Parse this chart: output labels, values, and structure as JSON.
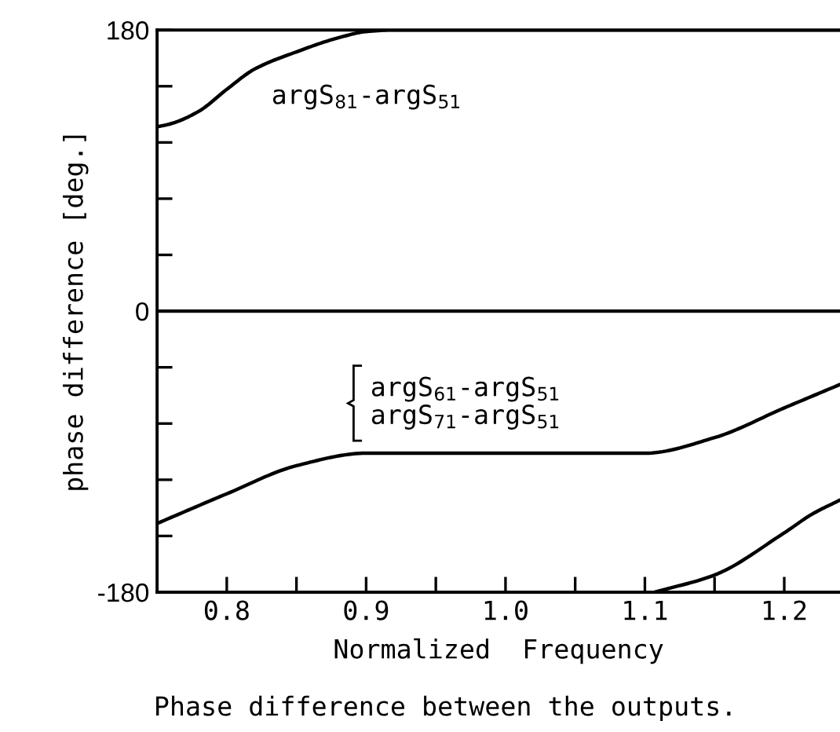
{
  "chart_data": {
    "type": "line",
    "xlabel": "Normalized  Frequency",
    "ylabel": "phase difference [deg.]",
    "xlim": [
      0.75,
      1.24
    ],
    "ylim": [
      -180,
      180
    ],
    "xticks": [
      {
        "value": 0.8,
        "label": "0.8"
      },
      {
        "value": 0.85,
        "label": null
      },
      {
        "value": 0.9,
        "label": "0.9"
      },
      {
        "value": 0.95,
        "label": null
      },
      {
        "value": 1.0,
        "label": "1.0"
      },
      {
        "value": 1.05,
        "label": null
      },
      {
        "value": 1.1,
        "label": "1.1"
      },
      {
        "value": 1.15,
        "label": null
      },
      {
        "value": 1.2,
        "label": "1.2"
      }
    ],
    "yticks": [
      -180,
      {
        "value": -144,
        "label": null
      },
      {
        "value": -108,
        "label": null
      },
      {
        "value": -72,
        "label": null
      },
      {
        "value": -36,
        "label": null
      },
      0,
      {
        "value": 36,
        "label": null
      },
      {
        "value": 72,
        "label": null
      },
      {
        "value": 108,
        "label": null
      },
      {
        "value": 144,
        "label": null
      },
      180
    ],
    "grid": false,
    "legend": false,
    "marker": "none",
    "line_style": "solid",
    "series": [
      {
        "color": "#000000",
        "x": [
          0.75,
          0.76,
          0.78,
          0.8,
          0.82,
          0.85,
          0.88,
          0.9,
          0.92,
          1.0,
          1.1,
          1.2,
          1.24
        ],
        "values": [
          118,
          120,
          128,
          142,
          155,
          166,
          175,
          179,
          180,
          180,
          180,
          180,
          180
        ]
      },
      {
        "color": "#000000",
        "x": [
          0.75,
          0.8,
          0.85,
          0.9,
          0.95,
          1.0,
          1.05,
          1.1,
          1.15,
          1.2,
          1.24
        ],
        "values": [
          -136,
          -117,
          -99,
          -91,
          -91,
          -91,
          -91,
          -91,
          -81,
          -62,
          -47
        ]
      },
      {
        "color": "#000000",
        "x": [
          1.107,
          1.15,
          1.2,
          1.22,
          1.24
        ],
        "values": [
          -180,
          -169,
          -142,
          -130,
          -121
        ]
      }
    ],
    "ref_lines": [
      {
        "axis": "y",
        "value": 0,
        "color": "#000000"
      }
    ],
    "annotations": [
      "argS$_{81}$-argS$_{51}$",
      "argS$_{61}$-argS$_{51}$\nargS$_{71}$-argS$_{51}$",
      "Phase difference between the outputs."
    ]
  }
}
